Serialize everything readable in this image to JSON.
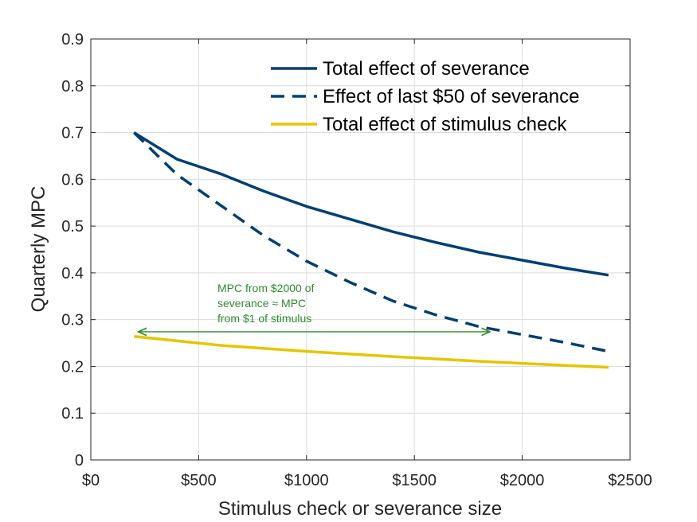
{
  "chart_data": {
    "type": "line",
    "xlabel": "Stimulus check or severance size",
    "ylabel": "Quarterly MPC",
    "xlim": [
      0,
      2500
    ],
    "ylim": [
      0,
      0.9
    ],
    "xticks": [
      0,
      500,
      1000,
      1500,
      2000,
      2500
    ],
    "xtick_labels": [
      "$0",
      "$500",
      "$1000",
      "$1500",
      "$2000",
      "$2500"
    ],
    "yticks": [
      0,
      0.1,
      0.2,
      0.3,
      0.4,
      0.5,
      0.6,
      0.7,
      0.8,
      0.9
    ],
    "ytick_labels": [
      "0",
      "0.1",
      "0.2",
      "0.3",
      "0.4",
      "0.5",
      "0.6",
      "0.7",
      "0.8",
      "0.9"
    ],
    "grid": true,
    "legend_position": "top-right",
    "series": [
      {
        "name": "Total effect of severance",
        "color": "#003f72",
        "style": "solid",
        "x": [
          200,
          400,
          600,
          800,
          1000,
          1200,
          1400,
          1600,
          1800,
          2000,
          2200,
          2400
        ],
        "y": [
          0.7,
          0.643,
          0.612,
          0.575,
          0.542,
          0.515,
          0.488,
          0.465,
          0.444,
          0.427,
          0.41,
          0.395
        ]
      },
      {
        "name": "Effect of last $50 of severance",
        "color": "#003f72",
        "style": "dashed",
        "x": [
          200,
          400,
          600,
          800,
          1000,
          1200,
          1400,
          1600,
          1800,
          2000,
          2200,
          2400
        ],
        "y": [
          0.7,
          0.61,
          0.545,
          0.48,
          0.425,
          0.38,
          0.34,
          0.31,
          0.285,
          0.268,
          0.251,
          0.232
        ]
      },
      {
        "name": "Total effect of stimulus check",
        "color": "#e5c500",
        "style": "solid",
        "x": [
          200,
          600,
          1000,
          1400,
          1800,
          2200,
          2400
        ],
        "y": [
          0.264,
          0.245,
          0.232,
          0.221,
          0.211,
          0.202,
          0.198
        ]
      }
    ],
    "annotation": {
      "lines": [
        "MPC from $2000 of",
        "severance ≈ MPC",
        "from $1 of stimulus"
      ],
      "color": "#2e8b2e",
      "arrow_y": 0.274,
      "arrow_x": [
        220,
        1850
      ]
    }
  }
}
